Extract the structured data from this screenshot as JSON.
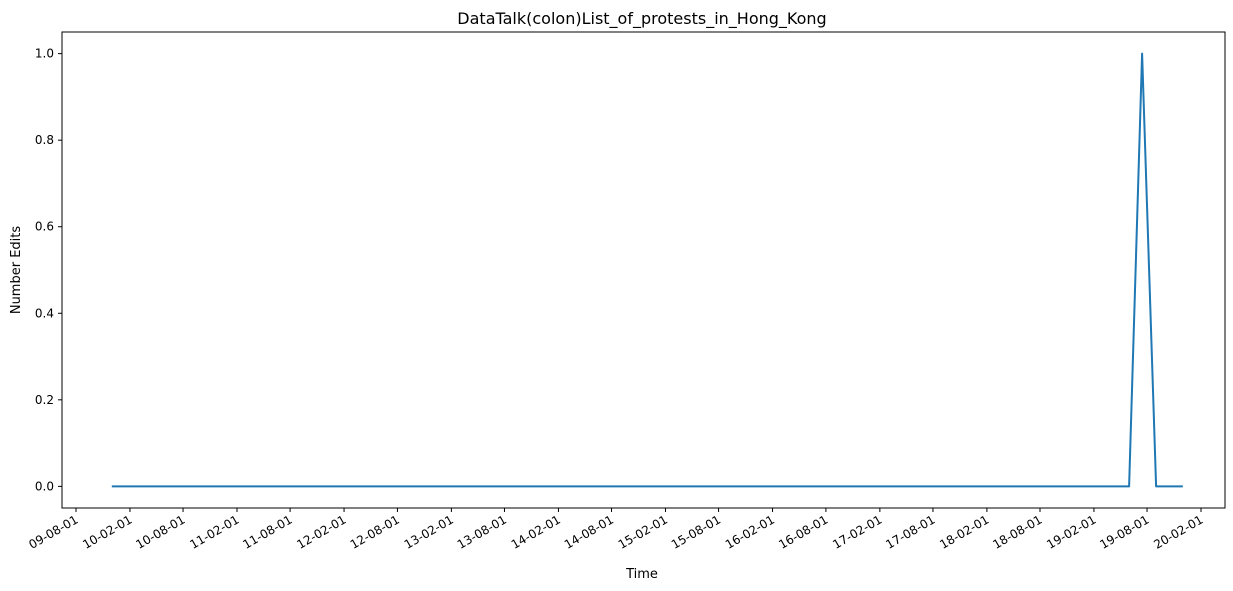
{
  "chart_data": {
    "type": "line",
    "title": "DataTalk(colon)List_of_protests_in_Hong_Kong",
    "xlabel": "Time",
    "ylabel": "Number Edits",
    "x_ticks": [
      "09-08-01",
      "10-02-01",
      "10-08-01",
      "11-02-01",
      "11-08-01",
      "12-02-01",
      "12-08-01",
      "13-02-01",
      "13-08-01",
      "14-02-01",
      "14-08-01",
      "15-02-01",
      "15-08-01",
      "16-02-01",
      "16-08-01",
      "17-02-01",
      "17-08-01",
      "18-02-01",
      "18-08-01",
      "19-02-01",
      "19-08-01",
      "20-02-01"
    ],
    "y_ticks": [
      "0.0",
      "0.2",
      "0.4",
      "0.6",
      "0.8",
      "1.0"
    ],
    "ylim": [
      -0.05,
      1.05
    ],
    "series": [
      {
        "color": "#1f77b4",
        "points": [
          {
            "x": "2009-12-01",
            "y": 0
          },
          {
            "x": "2019-06-01",
            "y": 0
          },
          {
            "x": "2019-07-15",
            "y": 1
          },
          {
            "x": "2019-09-01",
            "y": 0
          },
          {
            "x": "2019-12-01",
            "y": 0
          }
        ]
      }
    ],
    "grid": false
  }
}
